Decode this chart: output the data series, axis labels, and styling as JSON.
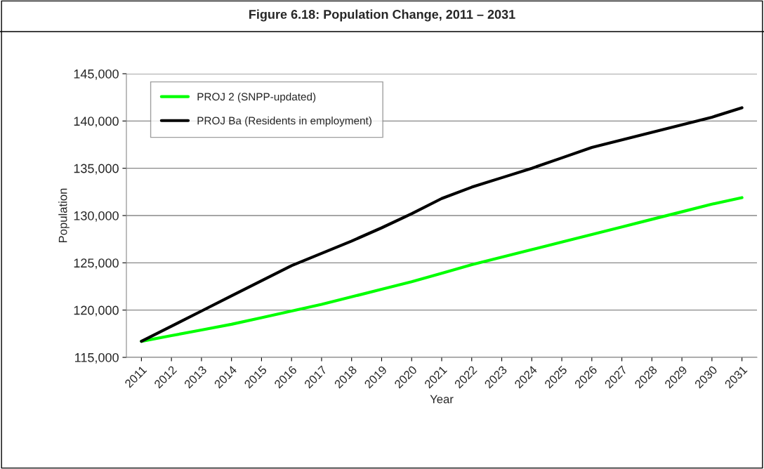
{
  "chart_data": {
    "type": "line",
    "title": "Figure 6.18: Population Change, 2011 – 2031",
    "xlabel": "Year",
    "ylabel": "Population",
    "categories": [
      "2011",
      "2012",
      "2013",
      "2014",
      "2015",
      "2016",
      "2017",
      "2018",
      "2019",
      "2020",
      "2021",
      "2022",
      "2023",
      "2024",
      "2025",
      "2026",
      "2027",
      "2028",
      "2029",
      "2030",
      "2031"
    ],
    "series": [
      {
        "name": "PROJ 2 (SNPP-updated)",
        "color": "#00ff00",
        "values": [
          116700,
          117300,
          117900,
          118500,
          119200,
          119900,
          120600,
          121400,
          122200,
          123000,
          123900,
          124800,
          125600,
          126400,
          127200,
          128000,
          128800,
          129600,
          130400,
          131200,
          131900
        ]
      },
      {
        "name": "PROJ Ba (Residents in employment)",
        "color": "#000000",
        "values": [
          116700,
          118300,
          119900,
          121500,
          123100,
          124700,
          126000,
          127300,
          128700,
          130200,
          131800,
          133000,
          134000,
          135000,
          136100,
          137200,
          138000,
          138800,
          139600,
          140400,
          141400
        ]
      }
    ],
    "ylim": [
      115000,
      145000
    ],
    "yticks": [
      {
        "value": 115000,
        "label": "115,000"
      },
      {
        "value": 120000,
        "label": "120,000"
      },
      {
        "value": 125000,
        "label": "125,000"
      },
      {
        "value": 130000,
        "label": "130,000"
      },
      {
        "value": 135000,
        "label": "135,000"
      },
      {
        "value": 140000,
        "label": "140,000"
      },
      {
        "value": 145000,
        "label": "145,000"
      }
    ],
    "grid": "y",
    "legend": "top left",
    "marker": "none",
    "line_style": "solid"
  }
}
